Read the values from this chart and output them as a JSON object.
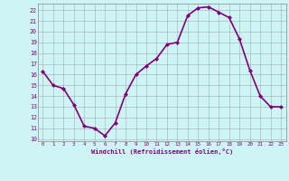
{
  "x": [
    0,
    1,
    2,
    3,
    4,
    5,
    6,
    7,
    8,
    9,
    10,
    11,
    12,
    13,
    14,
    15,
    16,
    17,
    18,
    19,
    20,
    21,
    22,
    23
  ],
  "y": [
    16.3,
    15.0,
    14.7,
    13.2,
    11.2,
    11.0,
    10.3,
    11.5,
    14.2,
    16.0,
    16.8,
    17.5,
    18.8,
    19.0,
    21.5,
    22.2,
    22.3,
    21.8,
    21.3,
    19.3,
    16.4,
    14.0,
    13.0,
    13.0
  ],
  "line_color": "#800080",
  "marker": "D",
  "marker_size": 2.0,
  "bg_color": "#cef5f5",
  "grid_color": "#aaaaaa",
  "xlabel": "Windchill (Refroidissement éolien,°C)",
  "xlabel_color": "#800080",
  "tick_color": "#800080",
  "ylim": [
    9.8,
    22.6
  ],
  "xlim": [
    -0.5,
    23.5
  ],
  "yticks": [
    10,
    11,
    12,
    13,
    14,
    15,
    16,
    17,
    18,
    19,
    20,
    21,
    22
  ],
  "xticks": [
    0,
    1,
    2,
    3,
    4,
    5,
    6,
    7,
    8,
    9,
    10,
    11,
    12,
    13,
    14,
    15,
    16,
    17,
    18,
    19,
    20,
    21,
    22,
    23
  ],
  "line_width": 1.2
}
